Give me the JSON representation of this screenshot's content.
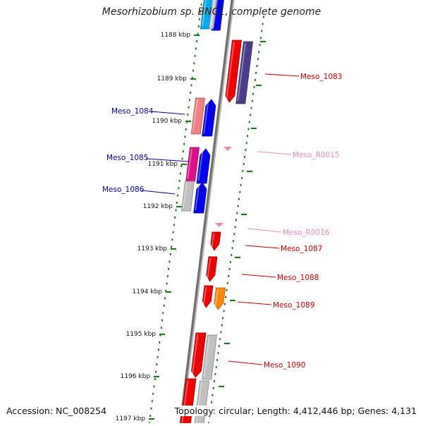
{
  "title": "Mesorhizobium sp. BNC1, complete genome",
  "accession": "Accession: NC_008254",
  "topology": "Topology: circular; Length: 4,412,446 bp; Genes: 4,131",
  "colors": {
    "backbone": "#8a8a8a",
    "tick": "#1a7a1a",
    "forward_label": "#cc0000",
    "reverse_label": "#0000aa",
    "rna_label": "#ee88bb"
  },
  "ticks": [
    "1188 kbp",
    "1189 kbp",
    "1190 kbp",
    "1191 kbp",
    "1192 kbp",
    "1193 kbp",
    "1194 kbp",
    "1195 kbp",
    "1196 kbp",
    "1197 kbp"
  ],
  "features": [
    {
      "id": "top_a",
      "label": "",
      "strand": "reverse",
      "color": "#00aaee"
    },
    {
      "id": "top_b",
      "label": "",
      "strand": "reverse",
      "color": "#0000ee"
    },
    {
      "id": "top_c",
      "label": "",
      "strand": "reverse",
      "color": "#c9c9c9"
    },
    {
      "id": "m1083a",
      "label": "Meso_1083",
      "strand": "forward",
      "color": "#ee0000"
    },
    {
      "id": "m1083b",
      "label": "",
      "strand": "forward",
      "color": "#4b3c8c"
    },
    {
      "id": "m1084a",
      "label": "Meso_1084",
      "strand": "reverse",
      "color": "#ee8080"
    },
    {
      "id": "m1084b",
      "label": "",
      "strand": "reverse",
      "color": "#0000ee"
    },
    {
      "id": "m1085a",
      "label": "Meso_1085",
      "strand": "reverse",
      "color": "#dd1088"
    },
    {
      "id": "m1085b",
      "label": "",
      "strand": "reverse",
      "color": "#0000ee"
    },
    {
      "id": "m1086a",
      "label": "Meso_1086",
      "strand": "reverse",
      "color": "#c0c0c0"
    },
    {
      "id": "m1086b",
      "label": "",
      "strand": "reverse",
      "color": "#0000ee"
    },
    {
      "id": "r0015",
      "label": "Meso_R0015",
      "strand": "forward",
      "color": "#ee88bb"
    },
    {
      "id": "r0016",
      "label": "Meso_R0016",
      "strand": "forward",
      "color": "#ee88bb"
    },
    {
      "id": "m1087",
      "label": "Meso_1087",
      "strand": "forward",
      "color": "#ee0000"
    },
    {
      "id": "m1088",
      "label": "Meso_1088",
      "strand": "forward",
      "color": "#ee0000"
    },
    {
      "id": "m1089a",
      "label": "Meso_1089",
      "strand": "forward",
      "color": "#ee0000"
    },
    {
      "id": "m1089b",
      "label": "",
      "strand": "forward",
      "color": "#ff8800"
    },
    {
      "id": "m1090a",
      "label": "Meso_1090",
      "strand": "forward",
      "color": "#ee0000"
    },
    {
      "id": "m1090b",
      "label": "",
      "strand": "forward",
      "color": "#c0c0c0"
    },
    {
      "id": "bot_a",
      "label": "",
      "strand": "forward",
      "color": "#ee0000"
    },
    {
      "id": "bot_b",
      "label": "",
      "strand": "forward",
      "color": "#c0c0c0"
    }
  ]
}
